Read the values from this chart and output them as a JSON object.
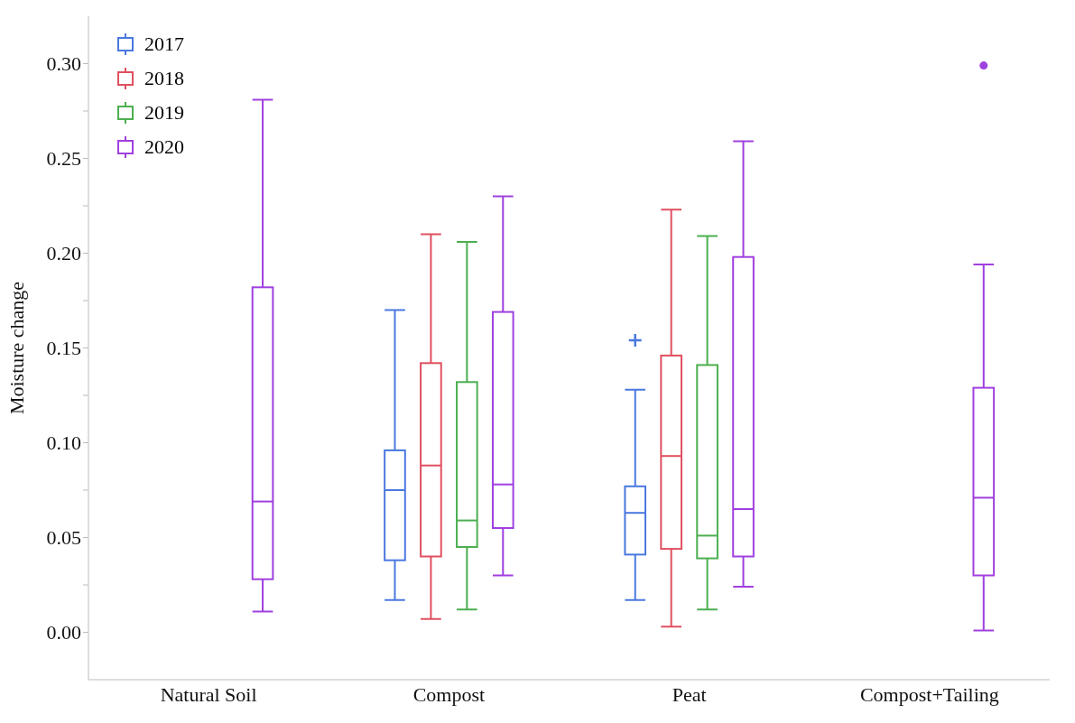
{
  "chart_data": {
    "type": "box",
    "ylabel": "Moisture change",
    "categories": [
      "Natural Soil",
      "Compost",
      "Peat",
      "Compost+Tailing"
    ],
    "ylim": [
      -0.025,
      0.325
    ],
    "yticks": [
      {
        "value": 0,
        "label": "0.00"
      },
      {
        "value": 0.025,
        "label": null
      },
      {
        "value": 0.05,
        "label": "0.05"
      },
      {
        "value": 0.075,
        "label": null
      },
      {
        "value": 0.1,
        "label": "0.10"
      },
      {
        "value": 0.125,
        "label": null
      },
      {
        "value": 0.15,
        "label": "0.15"
      },
      {
        "value": 0.175,
        "label": null
      },
      {
        "value": 0.2,
        "label": "0.20"
      },
      {
        "value": 0.225,
        "label": null
      },
      {
        "value": 0.25,
        "label": "0.25"
      },
      {
        "value": 0.275,
        "label": null
      },
      {
        "value": 0.3,
        "label": "0.30"
      }
    ],
    "legend": "top left",
    "series": [
      {
        "name": "2017",
        "color": "#4a78e0",
        "marker": "cross",
        "boxes": [
          null,
          {
            "low": 0.017,
            "q1": 0.038,
            "median": 0.075,
            "q3": 0.096,
            "high": 0.17
          },
          {
            "low": 0.017,
            "q1": 0.041,
            "median": 0.063,
            "q3": 0.077,
            "high": 0.128,
            "outliers": [
              0.154
            ]
          },
          null
        ]
      },
      {
        "name": "2018",
        "color": "#e05060",
        "boxes": [
          null,
          {
            "low": 0.007,
            "q1": 0.04,
            "median": 0.088,
            "q3": 0.142,
            "high": 0.21
          },
          {
            "low": 0.003,
            "q1": 0.044,
            "median": 0.093,
            "q3": 0.146,
            "high": 0.223
          },
          null
        ]
      },
      {
        "name": "2019",
        "color": "#4caf50",
        "boxes": [
          null,
          {
            "low": 0.012,
            "q1": 0.045,
            "median": 0.059,
            "q3": 0.132,
            "high": 0.206
          },
          {
            "low": 0.012,
            "q1": 0.039,
            "median": 0.051,
            "q3": 0.141,
            "high": 0.209
          },
          null
        ]
      },
      {
        "name": "2020",
        "color": "#a040e0",
        "marker": "circle",
        "boxes": [
          {
            "low": 0.011,
            "q1": 0.028,
            "median": 0.069,
            "q3": 0.182,
            "high": 0.281
          },
          {
            "low": 0.03,
            "q1": 0.055,
            "median": 0.078,
            "q3": 0.169,
            "high": 0.23
          },
          {
            "low": 0.024,
            "q1": 0.04,
            "median": 0.065,
            "q3": 0.198,
            "high": 0.259
          },
          {
            "low": 0.001,
            "q1": 0.03,
            "median": 0.071,
            "q3": 0.129,
            "high": 0.194,
            "outliers": [
              0.299
            ]
          }
        ]
      }
    ]
  }
}
